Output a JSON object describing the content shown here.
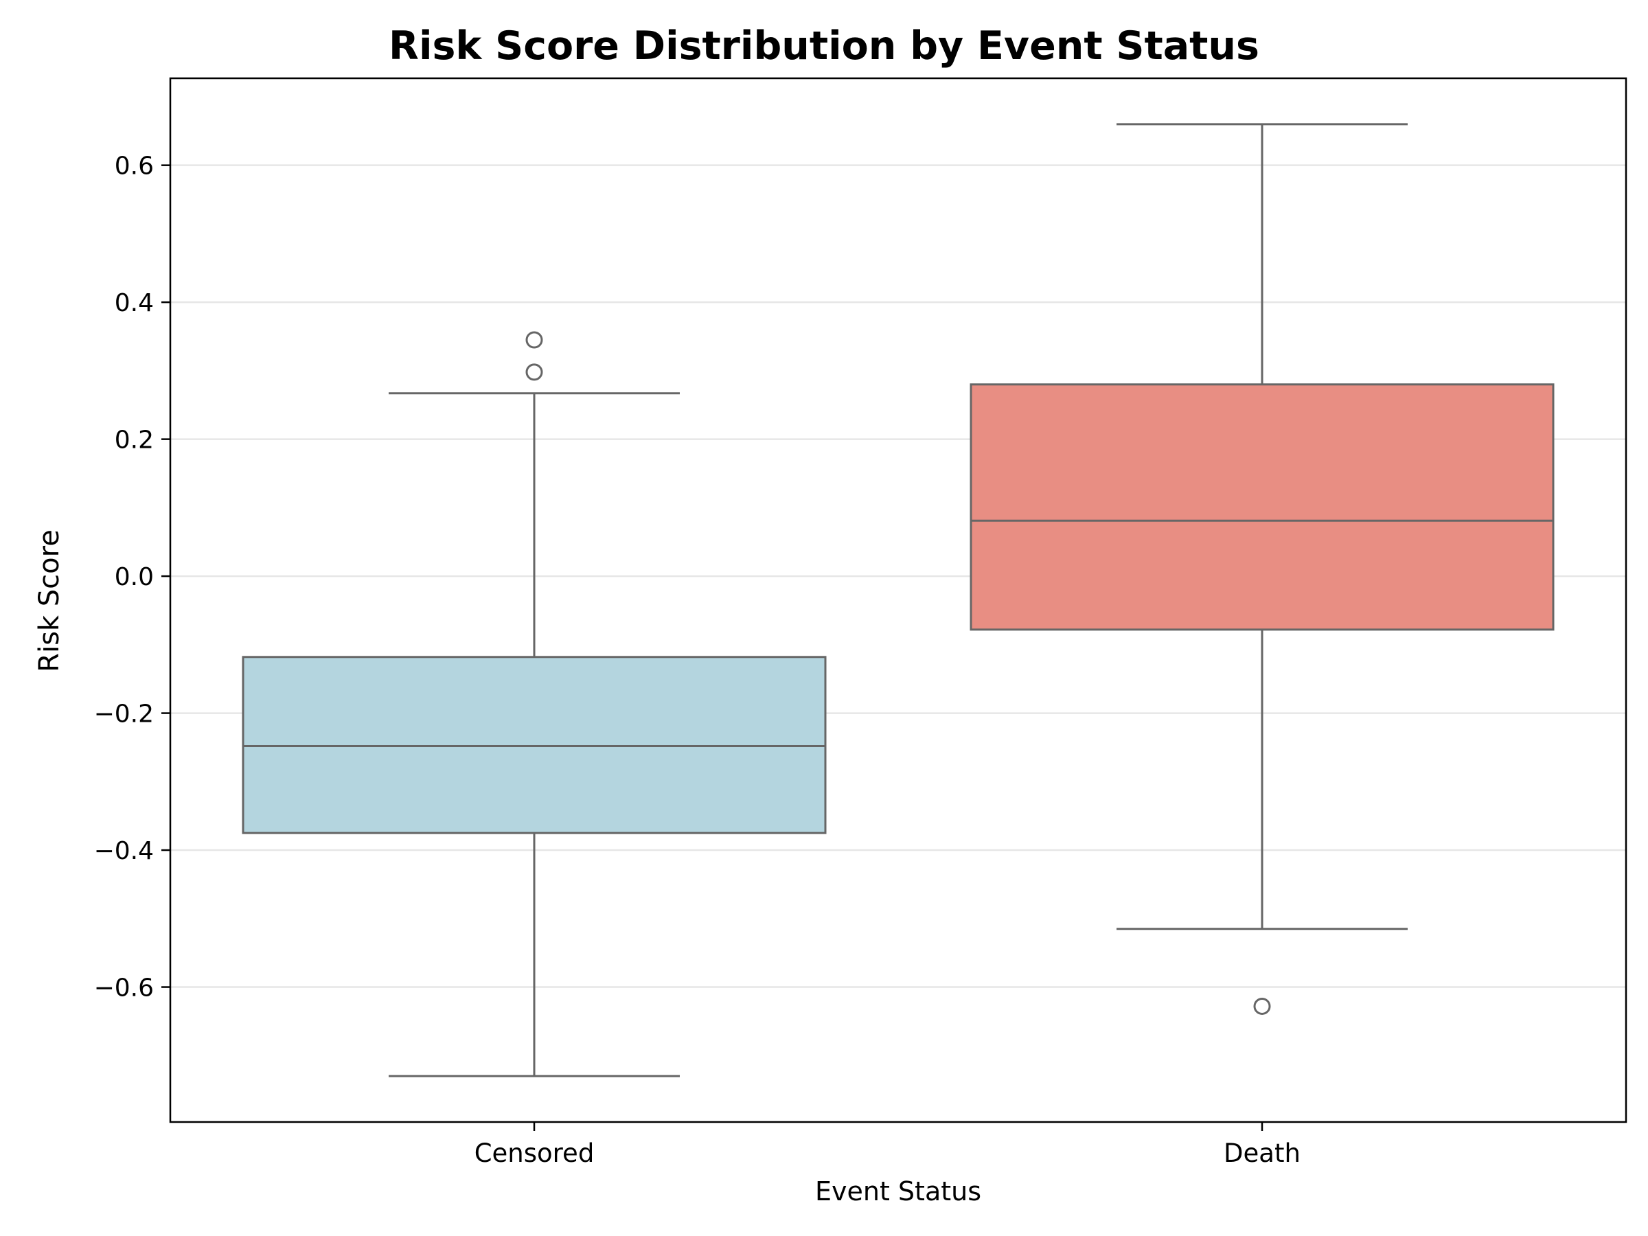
{
  "chart_data": {
    "type": "box",
    "title": "Risk Score Distribution by Event Status",
    "xlabel": "Event Status",
    "ylabel": "Risk Score",
    "categories": [
      "Censored",
      "Death"
    ],
    "boxes": [
      {
        "category": "Censored",
        "whisker_low": -0.73,
        "q1": -0.375,
        "median": -0.248,
        "q3": -0.118,
        "whisker_high": 0.267,
        "outliers": [
          0.345,
          0.298
        ],
        "color": "#b4d5df"
      },
      {
        "category": "Death",
        "whisker_low": -0.515,
        "q1": -0.078,
        "median": 0.081,
        "q3": 0.28,
        "whisker_high": 0.66,
        "outliers": [
          -0.628
        ],
        "color": "#e88e83"
      }
    ],
    "ylim": [
      -0.797,
      0.727
    ],
    "yticks": [
      -0.6,
      -0.4,
      -0.2,
      0.0,
      0.2,
      0.4,
      0.6
    ],
    "ytick_labels": [
      "−0.6",
      "−0.4",
      "−0.2",
      "0.0",
      "0.2",
      "0.4",
      "0.6"
    ],
    "grid": "horizontal",
    "line_color": "#666666",
    "grid_color": "#e6e6e6"
  }
}
